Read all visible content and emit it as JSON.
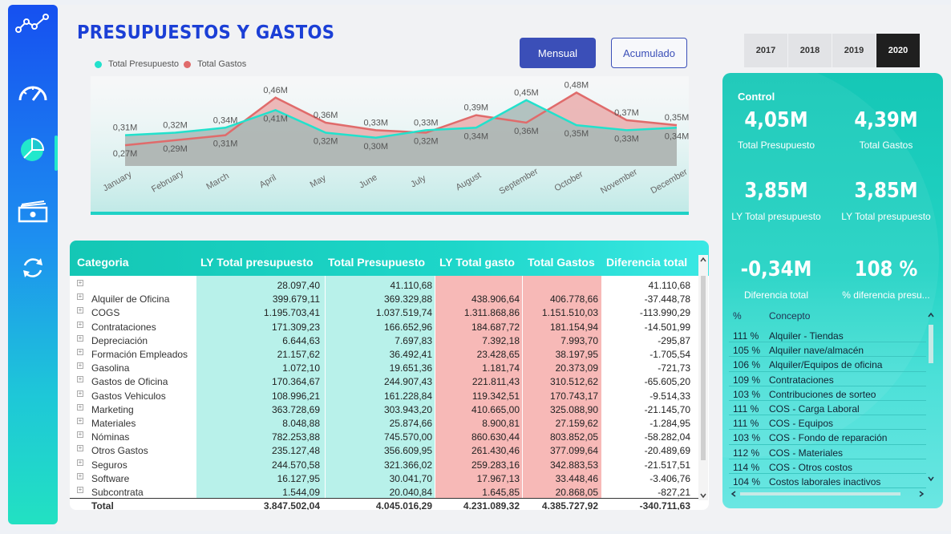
{
  "header": {
    "title": "PRESUPUESTOS Y GASTOS"
  },
  "sidebar": {
    "icons": [
      "line-chart-icon",
      "speedometer-icon",
      "pie-chart-icon",
      "money-icon",
      "refresh-icon"
    ]
  },
  "toggle": {
    "mensual": "Mensual",
    "acumulado": "Acumulado"
  },
  "years": [
    "2017",
    "2018",
    "2019",
    "2020"
  ],
  "selected_year": "2020",
  "colors": {
    "presupuesto": "#22e1cc",
    "gastos": "#e06b6b",
    "accent": "#1b3fd6"
  },
  "chart_data": {
    "type": "area",
    "categories": [
      "January",
      "February",
      "March",
      "April",
      "May",
      "June",
      "July",
      "August",
      "September",
      "October",
      "November",
      "December"
    ],
    "series": [
      {
        "name": "Total Presupuesto",
        "values": [
          0.31,
          0.32,
          0.34,
          0.41,
          0.32,
          0.3,
          0.33,
          0.34,
          0.45,
          0.35,
          0.33,
          0.34
        ],
        "labels": [
          "0,31M",
          "0,32M",
          "0,34M",
          "0,41M",
          "0,32M",
          "0,30M",
          "0,33M",
          "0,34M",
          "0,45M",
          "0,35M",
          "0,33M",
          "0,34M"
        ]
      },
      {
        "name": "Total Gastos",
        "values": [
          0.27,
          0.29,
          0.31,
          0.46,
          0.36,
          0.33,
          0.32,
          0.39,
          0.36,
          0.48,
          0.37,
          0.35
        ],
        "labels": [
          "0,27M",
          "0,29M",
          "0,31M",
          "0,46M",
          "0,36M",
          "0,33M",
          "0,32M",
          "0,39M",
          "0,36M",
          "0,48M",
          "0,37M",
          "0,35M"
        ]
      }
    ],
    "ylim": [
      0.2,
      0.52
    ]
  },
  "table": {
    "headers": [
      "Categoria",
      "LY Total presupuesto",
      "Total Presupuesto",
      "LY Total gasto",
      "Total Gastos",
      "Diferencia total"
    ],
    "rows": [
      [
        "",
        "28.097,40",
        "41.110,68",
        "",
        "",
        "41.110,68"
      ],
      [
        "Alquiler de Oficina",
        "399.679,11",
        "369.329,88",
        "438.906,64",
        "406.778,66",
        "-37.448,78"
      ],
      [
        "COGS",
        "1.195.703,41",
        "1.037.519,74",
        "1.311.868,86",
        "1.151.510,03",
        "-113.990,29"
      ],
      [
        "Contrataciones",
        "171.309,23",
        "166.652,96",
        "184.687,72",
        "181.154,94",
        "-14.501,99"
      ],
      [
        "Depreciación",
        "6.644,63",
        "7.697,83",
        "7.392,18",
        "7.993,70",
        "-295,87"
      ],
      [
        "Formación Empleados",
        "21.157,62",
        "36.492,41",
        "23.428,65",
        "38.197,95",
        "-1.705,54"
      ],
      [
        "Gasolina",
        "1.072,10",
        "19.651,36",
        "1.181,74",
        "20.373,09",
        "-721,73"
      ],
      [
        "Gastos de Oficina",
        "170.364,67",
        "244.907,43",
        "221.811,43",
        "310.512,62",
        "-65.605,20"
      ],
      [
        "Gastos Vehiculos",
        "108.996,21",
        "161.228,84",
        "119.342,51",
        "170.743,17",
        "-9.514,33"
      ],
      [
        "Marketing",
        "363.728,69",
        "303.943,20",
        "410.665,00",
        "325.088,90",
        "-21.145,70"
      ],
      [
        "Materiales",
        "8.048,88",
        "25.874,66",
        "8.900,81",
        "27.159,62",
        "-1.284,95"
      ],
      [
        "Nóminas",
        "782.253,88",
        "745.570,00",
        "860.630,44",
        "803.852,05",
        "-58.282,04"
      ],
      [
        "Otros Gastos",
        "235.127,48",
        "356.609,95",
        "261.430,46",
        "377.099,64",
        "-20.489,69"
      ],
      [
        "Seguros",
        "244.570,58",
        "321.366,02",
        "259.283,16",
        "342.883,53",
        "-21.517,51"
      ],
      [
        "Software",
        "16.127,95",
        "30.041,70",
        "17.967,13",
        "33.448,46",
        "-3.406,76"
      ],
      [
        "Subcontrata",
        "1.544,09",
        "20.040,84",
        "1.645,85",
        "20.868,05",
        "-827,21"
      ]
    ],
    "total": [
      "Total",
      "3.847.502,04",
      "4.045.016,29",
      "4.231.089,32",
      "4.385.727,92",
      "-340.711,63"
    ]
  },
  "control": {
    "label": "Control",
    "kpis": [
      {
        "value": "4,05M",
        "label": "Total Presupuesto"
      },
      {
        "value": "4,39M",
        "label": "Total Gastos"
      },
      {
        "value": "3,85M",
        "label": "LY Total presupuesto"
      },
      {
        "value": "3,85M",
        "label": "LY Total presupuesto"
      },
      {
        "value": "-0,34M",
        "label": "Diferencia total"
      },
      {
        "value": "108 %",
        "label": "% diferencia presu..."
      }
    ],
    "list_headers": [
      "%",
      "Concepto"
    ],
    "list": [
      [
        "111 %",
        "Alquiler - Tiendas"
      ],
      [
        "105 %",
        "Alquiler nave/almacén"
      ],
      [
        "106 %",
        "Alquiler/Equipos de oficina"
      ],
      [
        "109 %",
        "Contrataciones"
      ],
      [
        "103 %",
        "Contribuciones de sorteo"
      ],
      [
        "111 %",
        "COS - Carga Laboral"
      ],
      [
        "111 %",
        "COS - Equipos"
      ],
      [
        "103 %",
        "COS - Fondo de reparación"
      ],
      [
        "112 %",
        "COS - Materiales"
      ],
      [
        "114 %",
        "COS - Otros costos"
      ],
      [
        "104 %",
        "Costos laborales inactivos"
      ]
    ]
  }
}
